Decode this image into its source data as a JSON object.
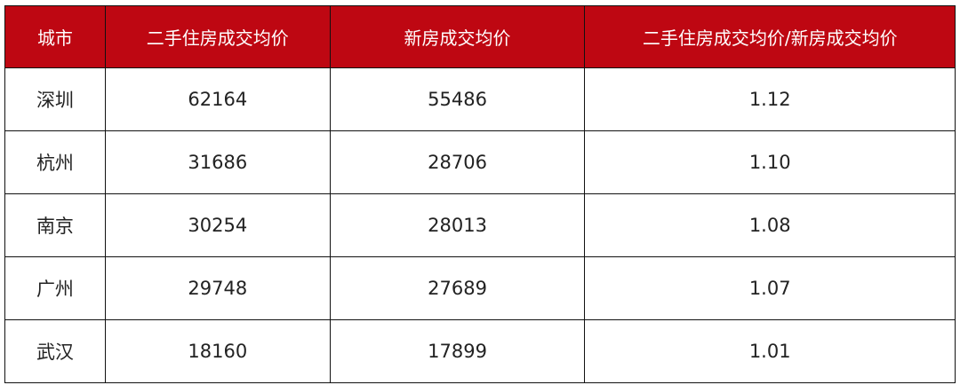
{
  "table": {
    "header_color": "#BE0712",
    "headers": [
      "城市",
      "二手住房成交均价",
      "新房成交均价",
      "二手住房成交均价/新房成交均价"
    ],
    "rows": [
      [
        "深圳",
        "62164",
        "55486",
        "1.12"
      ],
      [
        "杭州",
        "31686",
        "28706",
        "1.10"
      ],
      [
        "南京",
        "30254",
        "28013",
        "1.08"
      ],
      [
        "广州",
        "29748",
        "27689",
        "1.07"
      ],
      [
        "武汉",
        "18160",
        "17899",
        "1.01"
      ]
    ]
  }
}
